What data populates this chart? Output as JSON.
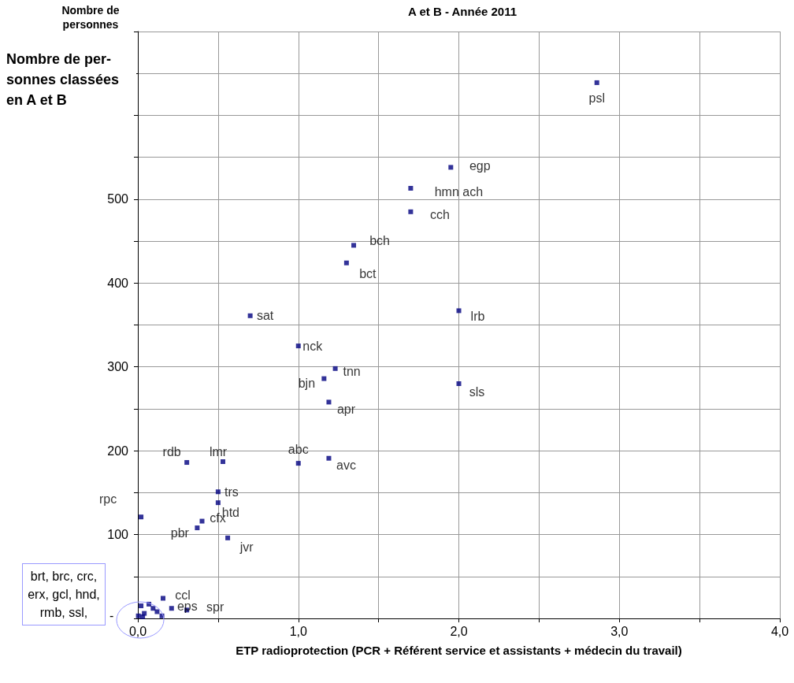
{
  "chart_data": {
    "type": "scatter",
    "title": "A et B - Année 2011",
    "xlabel": "ETP radioprotection (PCR + Référent service et assistants + médecin du travail)",
    "ylabel": "Nombre de per-\nsonnes classées\nen A et B",
    "annotations": [
      "Nombre de personnes",
      "brt, brc, crc, erx, gcl, hnd, rmb, ssl,",
      "-"
    ],
    "x": [
      2.86,
      1.95,
      1.7,
      1.7,
      1.345,
      1.3,
      0.7,
      2.0,
      1.0,
      1.23,
      1.16,
      2.0,
      1.19,
      0.305,
      0.53,
      1.0,
      1.19,
      0.5,
      0.5,
      0.02,
      0.4,
      0.37,
      0.56,
      0.157,
      0.21,
      0.305,
      0.02,
      0.069,
      0.095,
      0.12,
      0.15,
      0.003,
      0.03,
      0.04
    ],
    "values": [
      639,
      538,
      513,
      485,
      445,
      424,
      361,
      367,
      325,
      298,
      286,
      280,
      258,
      186,
      187,
      185,
      191,
      151,
      138,
      121,
      116,
      108,
      96,
      24,
      12,
      10,
      15,
      17,
      12,
      8,
      3,
      3,
      2,
      6
    ],
    "value_labels": [
      "psl",
      "egp",
      "hmn ach",
      "cch",
      "bch",
      "bct",
      "sat",
      "lrb",
      "nck",
      "tnn",
      "bjn",
      "sls",
      "apr",
      "rdb",
      "lmr",
      "abc",
      "avc",
      "trs",
      "htd",
      "rpc",
      "cfx",
      "pbr",
      "jvr",
      "ccl",
      "eps",
      "spr",
      null,
      null,
      null,
      null,
      null,
      null,
      null,
      null
    ],
    "color": "#000080",
    "marker": "square",
    "xlim": [
      0,
      4
    ],
    "xticks": [
      {
        "value": 0,
        "label": "0,0"
      },
      {
        "value": 0.5,
        "label": null
      },
      {
        "value": 1,
        "label": "1,0"
      },
      {
        "value": 1.5,
        "label": null
      },
      {
        "value": 2,
        "label": "2,0"
      },
      {
        "value": 2.5,
        "label": null
      },
      {
        "value": 3,
        "label": "3,0"
      },
      {
        "value": 3.5,
        "label": null
      },
      {
        "value": 4,
        "label": "4,0"
      }
    ],
    "ylim": [
      0,
      700
    ],
    "yticks": [
      {
        "value": 0,
        "label": null
      },
      {
        "value": 50,
        "label": null
      },
      100,
      {
        "value": 150,
        "label": null
      },
      200,
      {
        "value": 250,
        "label": null
      },
      300,
      {
        "value": 350,
        "label": null
      },
      400,
      {
        "value": 450,
        "label": null
      },
      500,
      {
        "value": 550,
        "label": null
      },
      {
        "value": 600,
        "label": null
      },
      {
        "value": 650,
        "label": null
      },
      {
        "value": 700,
        "label": null
      }
    ],
    "grid": true
  }
}
